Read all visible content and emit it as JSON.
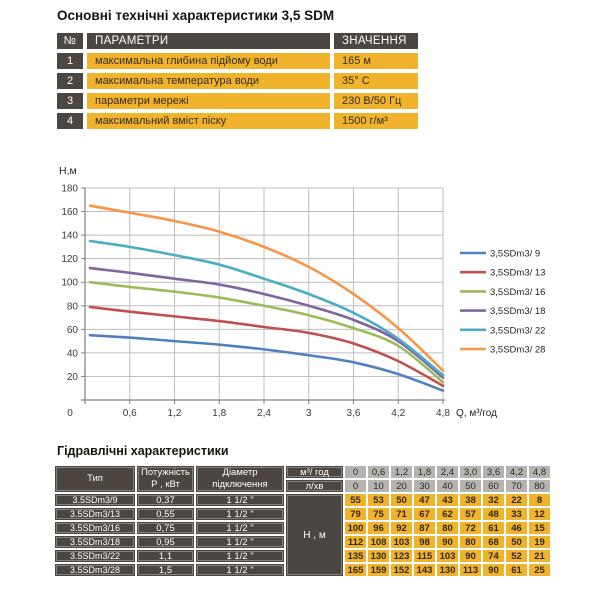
{
  "title": "Основні технічні характеристики 3,5 SDM",
  "specs": {
    "headers": {
      "num": "№",
      "param": "ПАРАМЕТРИ",
      "value": "ЗНАЧЕННЯ"
    },
    "rows": [
      {
        "num": "1",
        "param": "максимальна глибина підйому води",
        "value": "165 м"
      },
      {
        "num": "2",
        "param": "максимальна температура води",
        "value": "35° С"
      },
      {
        "num": "3",
        "param": "параметри мережі",
        "value": "230 В/50 Гц"
      },
      {
        "num": "4",
        "param": "максимальний вміст піску",
        "value": "1500 г/м³"
      }
    ]
  },
  "chart_data": {
    "type": "line",
    "title": "",
    "ylabel": "Н,м",
    "xlabel": "Q,  м³/год",
    "x": [
      0,
      0.6,
      1.2,
      1.8,
      2.4,
      3,
      3.6,
      4.2,
      4.8
    ],
    "x_tick_labels": [
      "0",
      "0,6",
      "1,2",
      "1,8",
      "2,4",
      "3",
      "3,6",
      "4,2",
      "4,8"
    ],
    "y_ticks": [
      20,
      40,
      60,
      80,
      100,
      120,
      140,
      160,
      180
    ],
    "xlim": [
      0,
      4.8
    ],
    "ylim": [
      0,
      180
    ],
    "grid": true,
    "legend_position": "right",
    "series": [
      {
        "name": "3,5SDm3/ 9",
        "color": "#4F81BD",
        "values": [
          55,
          53,
          50,
          47,
          43,
          38,
          32,
          22,
          8
        ]
      },
      {
        "name": "3,5SDm3/ 13",
        "color": "#C0504D",
        "values": [
          79,
          75,
          71,
          67,
          62,
          57,
          48,
          33,
          12
        ]
      },
      {
        "name": "3,5SDm3/ 16",
        "color": "#9BBB59",
        "values": [
          100,
          96,
          92,
          87,
          80,
          72,
          61,
          46,
          15
        ]
      },
      {
        "name": "3,5SDm3/ 18",
        "color": "#8064A2",
        "values": [
          112,
          108,
          103,
          98,
          90,
          80,
          68,
          50,
          19
        ]
      },
      {
        "name": "3,5SDm3/ 22",
        "color": "#4BACC6",
        "values": [
          135,
          130,
          123,
          115,
          103,
          90,
          74,
          52,
          21
        ]
      },
      {
        "name": "3,5SDm3/ 28",
        "color": "#F79646",
        "values": [
          165,
          159,
          152,
          143,
          130,
          113,
          90,
          61,
          25
        ]
      }
    ]
  },
  "hydraulics": {
    "title": "Гідравлічні характеристики",
    "headers": {
      "type": "Тип",
      "power_top": "Потужність",
      "power_bottom": "Р , кВт",
      "diameter_top": "Діаметр",
      "diameter_bottom": "підключення",
      "flow_m3h": "м³/ год",
      "flow_lmin": "л/хв",
      "head": "Н , м"
    },
    "flow_m3h_values": [
      "0",
      "0,6",
      "1,2",
      "1,8",
      "2,4",
      "3,0",
      "3,6",
      "4,2",
      "4,8"
    ],
    "flow_lmin_values": [
      "0",
      "10",
      "20",
      "30",
      "40",
      "50",
      "60",
      "70",
      "80"
    ],
    "rows": [
      {
        "type": "3.5SDm3/9",
        "power": "0,37",
        "diameter": "1 1/2 \"",
        "heads": [
          "55",
          "53",
          "50",
          "47",
          "43",
          "38",
          "32",
          "22",
          "8"
        ]
      },
      {
        "type": "3.5SDm3/13",
        "power": "0,55",
        "diameter": "1 1/2 \"",
        "heads": [
          "79",
          "75",
          "71",
          "67",
          "62",
          "57",
          "48",
          "33",
          "12"
        ]
      },
      {
        "type": "3.5SDm3/16",
        "power": "0,75",
        "diameter": "1 1/2 \"",
        "heads": [
          "100",
          "96",
          "92",
          "87",
          "80",
          "72",
          "61",
          "46",
          "15"
        ]
      },
      {
        "type": "3.5SDm3/18",
        "power": "0,95",
        "diameter": "1 1/2 \"",
        "heads": [
          "112",
          "108",
          "103",
          "98",
          "90",
          "80",
          "68",
          "50",
          "19"
        ]
      },
      {
        "type": "3.5SDm3/22",
        "power": "1,1",
        "diameter": "1 1/2 \"",
        "heads": [
          "135",
          "130",
          "123",
          "115",
          "103",
          "90",
          "74",
          "52",
          "21"
        ]
      },
      {
        "type": "3.5SDm3/28",
        "power": "1,5",
        "diameter": "1 1/2 \"",
        "heads": [
          "165",
          "159",
          "152",
          "143",
          "130",
          "113",
          "90",
          "61",
          "25"
        ]
      }
    ]
  },
  "colors": {
    "dark_cell": "#4B4641",
    "yellow_cell": "#F1B32C",
    "gray_cell": "#B5B4B0",
    "grid_line": "#BDBDBD",
    "axis_line": "#808080",
    "tick_text": "#3a3a3a",
    "legend_text": "#262626"
  }
}
